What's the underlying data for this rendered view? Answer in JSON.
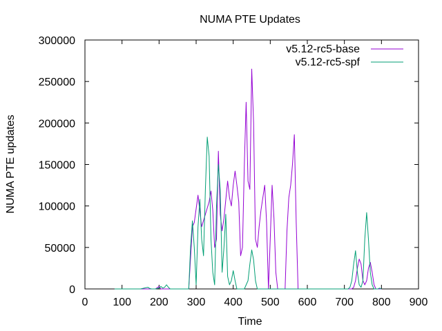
{
  "chart_data": {
    "type": "line",
    "title": "NUMA PTE Updates",
    "xlabel": "Time",
    "ylabel": "NUMA PTE updates",
    "xlim": [
      0,
      900
    ],
    "ylim": [
      0,
      300000
    ],
    "xticks": [
      0,
      100,
      200,
      300,
      400,
      500,
      600,
      700,
      800,
      900
    ],
    "yticks": [
      0,
      50000,
      100000,
      150000,
      200000,
      250000,
      300000
    ],
    "grid": false,
    "legend_position": "top-right",
    "series": [
      {
        "name": "v5.12-rc5-base",
        "color": "#9400d3",
        "points": [
          [
            80,
            0
          ],
          [
            90,
            0
          ],
          [
            100,
            0
          ],
          [
            110,
            0
          ],
          [
            120,
            0
          ],
          [
            130,
            0
          ],
          [
            140,
            0
          ],
          [
            150,
            0
          ],
          [
            160,
            0
          ],
          [
            170,
            0
          ],
          [
            180,
            0
          ],
          [
            190,
            0
          ],
          [
            200,
            3000
          ],
          [
            205,
            0
          ],
          [
            210,
            0
          ],
          [
            220,
            0
          ],
          [
            230,
            0
          ],
          [
            240,
            0
          ],
          [
            250,
            0
          ],
          [
            260,
            0
          ],
          [
            270,
            0
          ],
          [
            280,
            0
          ],
          [
            290,
            75000
          ],
          [
            295,
            80000
          ],
          [
            305,
            113000
          ],
          [
            315,
            75000
          ],
          [
            325,
            90000
          ],
          [
            335,
            105000
          ],
          [
            340,
            118000
          ],
          [
            345,
            95000
          ],
          [
            350,
            50000
          ],
          [
            355,
            60000
          ],
          [
            360,
            166000
          ],
          [
            365,
            90000
          ],
          [
            370,
            70000
          ],
          [
            375,
            85000
          ],
          [
            385,
            130000
          ],
          [
            390,
            110000
          ],
          [
            395,
            100000
          ],
          [
            400,
            125000
          ],
          [
            405,
            142000
          ],
          [
            410,
            125000
          ],
          [
            415,
            105000
          ],
          [
            420,
            40000
          ],
          [
            425,
            50000
          ],
          [
            430,
            150000
          ],
          [
            435,
            225000
          ],
          [
            440,
            130000
          ],
          [
            445,
            120000
          ],
          [
            450,
            265000
          ],
          [
            455,
            200000
          ],
          [
            460,
            60000
          ],
          [
            465,
            50000
          ],
          [
            470,
            75000
          ],
          [
            475,
            95000
          ],
          [
            480,
            110000
          ],
          [
            485,
            125000
          ],
          [
            490,
            80000
          ],
          [
            495,
            0
          ],
          [
            500,
            60000
          ],
          [
            505,
            125000
          ],
          [
            510,
            85000
          ],
          [
            515,
            20000
          ],
          [
            520,
            0
          ],
          [
            530,
            0
          ],
          [
            540,
            0
          ],
          [
            545,
            70000
          ],
          [
            550,
            110000
          ],
          [
            555,
            125000
          ],
          [
            560,
            150000
          ],
          [
            565,
            186000
          ],
          [
            570,
            80000
          ],
          [
            575,
            0
          ],
          [
            600,
            0
          ],
          [
            620,
            0
          ],
          [
            640,
            0
          ],
          [
            660,
            0
          ],
          [
            680,
            0
          ],
          [
            700,
            0
          ],
          [
            710,
            0
          ],
          [
            720,
            0
          ],
          [
            725,
            2000
          ],
          [
            730,
            10000
          ],
          [
            735,
            25000
          ],
          [
            740,
            36000
          ],
          [
            745,
            30000
          ],
          [
            750,
            10000
          ],
          [
            755,
            5000
          ],
          [
            760,
            10000
          ],
          [
            765,
            25000
          ],
          [
            770,
            32000
          ],
          [
            775,
            20000
          ],
          [
            780,
            5000
          ],
          [
            785,
            0
          ],
          [
            790,
            0
          ],
          [
            800,
            0
          ]
        ]
      },
      {
        "name": "v5.12-rc5-spf",
        "color": "#009e73",
        "points": [
          [
            80,
            0
          ],
          [
            100,
            0
          ],
          [
            110,
            0
          ],
          [
            120,
            0
          ],
          [
            130,
            0
          ],
          [
            140,
            0
          ],
          [
            150,
            0
          ],
          [
            160,
            1000
          ],
          [
            170,
            2000
          ],
          [
            175,
            500
          ],
          [
            180,
            0
          ],
          [
            190,
            0
          ],
          [
            200,
            1000
          ],
          [
            205,
            3000
          ],
          [
            210,
            1000
          ],
          [
            215,
            2000
          ],
          [
            220,
            5000
          ],
          [
            225,
            2000
          ],
          [
            230,
            0
          ],
          [
            240,
            0
          ],
          [
            260,
            0
          ],
          [
            270,
            0
          ],
          [
            280,
            0
          ],
          [
            285,
            50000
          ],
          [
            290,
            82000
          ],
          [
            295,
            50000
          ],
          [
            300,
            5000
          ],
          [
            305,
            75000
          ],
          [
            310,
            108000
          ],
          [
            315,
            60000
          ],
          [
            320,
            40000
          ],
          [
            325,
            120000
          ],
          [
            330,
            183000
          ],
          [
            335,
            160000
          ],
          [
            340,
            60000
          ],
          [
            345,
            20000
          ],
          [
            350,
            5000
          ],
          [
            355,
            100000
          ],
          [
            360,
            150000
          ],
          [
            365,
            120000
          ],
          [
            370,
            20000
          ],
          [
            375,
            50000
          ],
          [
            380,
            90000
          ],
          [
            385,
            15000
          ],
          [
            390,
            5000
          ],
          [
            395,
            10000
          ],
          [
            400,
            22000
          ],
          [
            405,
            10000
          ],
          [
            410,
            0
          ],
          [
            420,
            0
          ],
          [
            430,
            0
          ],
          [
            440,
            10000
          ],
          [
            445,
            30000
          ],
          [
            450,
            47000
          ],
          [
            455,
            35000
          ],
          [
            460,
            10000
          ],
          [
            465,
            0
          ],
          [
            470,
            0
          ],
          [
            480,
            0
          ],
          [
            500,
            0
          ],
          [
            520,
            0
          ],
          [
            540,
            0
          ],
          [
            560,
            0
          ],
          [
            580,
            0
          ],
          [
            600,
            0
          ],
          [
            620,
            0
          ],
          [
            640,
            0
          ],
          [
            660,
            0
          ],
          [
            680,
            0
          ],
          [
            700,
            0
          ],
          [
            710,
            0
          ],
          [
            715,
            2000
          ],
          [
            720,
            10000
          ],
          [
            725,
            30000
          ],
          [
            730,
            46000
          ],
          [
            735,
            20000
          ],
          [
            740,
            5000
          ],
          [
            745,
            2000
          ],
          [
            750,
            10000
          ],
          [
            755,
            60000
          ],
          [
            760,
            92000
          ],
          [
            765,
            60000
          ],
          [
            770,
            20000
          ],
          [
            775,
            5000
          ],
          [
            780,
            0
          ],
          [
            790,
            0
          ],
          [
            795,
            1000
          ],
          [
            800,
            0
          ]
        ]
      }
    ]
  }
}
